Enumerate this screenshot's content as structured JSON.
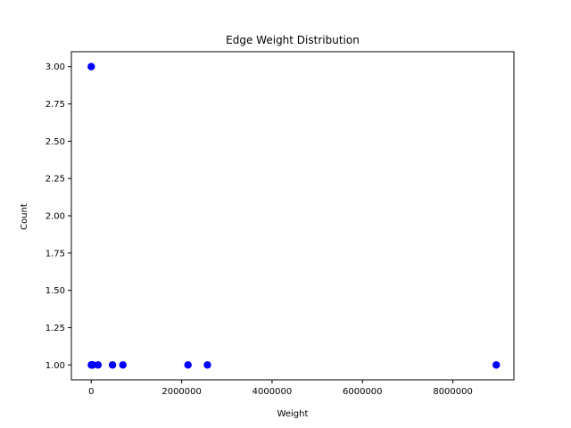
{
  "chart_data": {
    "type": "scatter",
    "title": "Edge Weight Distribution",
    "xlabel": "Weight",
    "ylabel": "Count",
    "xlim": [
      -440000,
      9350000
    ],
    "ylim": [
      0.9,
      3.1
    ],
    "xticks": [
      0,
      2000000,
      4000000,
      6000000,
      8000000
    ],
    "xtick_labels": [
      "0",
      "2000000",
      "4000000",
      "6000000",
      "8000000"
    ],
    "yticks": [
      1.0,
      1.25,
      1.5,
      1.75,
      2.0,
      2.25,
      2.5,
      2.75,
      3.0
    ],
    "ytick_labels": [
      "1.00",
      "1.25",
      "1.50",
      "1.75",
      "2.00",
      "2.25",
      "2.50",
      "2.75",
      "3.00"
    ],
    "grid": false,
    "marker_color": "#0000ff",
    "series": [
      {
        "x": [
          2000,
          5000,
          10000,
          20000,
          35000,
          150000,
          470000,
          700000,
          2140000,
          2570000,
          8960000,
          0
        ],
        "y": [
          1,
          1,
          1,
          1,
          1,
          1,
          1,
          1,
          1,
          1,
          1,
          3
        ]
      }
    ]
  }
}
